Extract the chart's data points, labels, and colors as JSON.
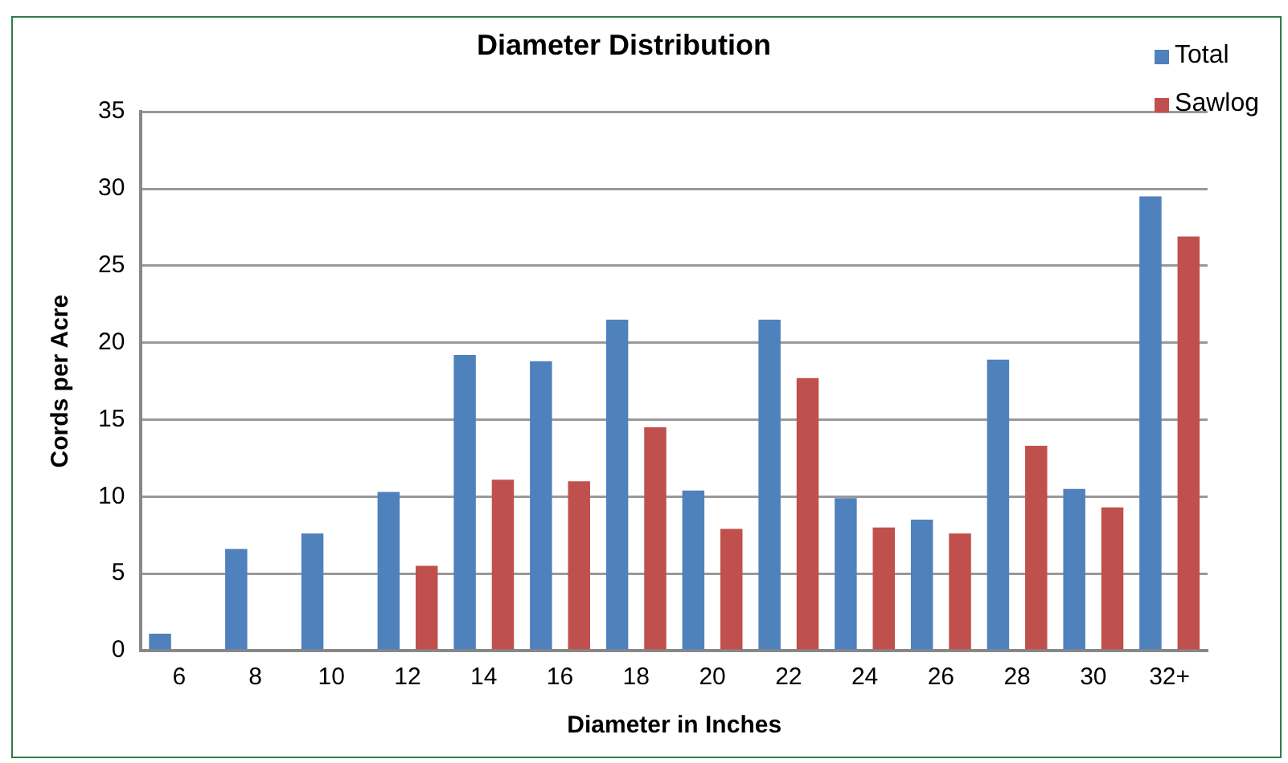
{
  "chart_data": {
    "type": "bar",
    "title": "Diameter Distribution",
    "xlabel": "Diameter in Inches",
    "ylabel": "Cords per Acre",
    "categories": [
      "6",
      "8",
      "10",
      "12",
      "14",
      "16",
      "18",
      "20",
      "22",
      "24",
      "26",
      "28",
      "30",
      "32+"
    ],
    "series": [
      {
        "name": "Total",
        "color": "#4f81bd",
        "values": [
          1.1,
          6.6,
          7.6,
          10.3,
          19.2,
          18.8,
          21.5,
          10.4,
          21.5,
          9.9,
          8.5,
          18.9,
          10.5,
          29.5
        ]
      },
      {
        "name": "Sawlog",
        "color": "#c0504d",
        "values": [
          null,
          null,
          null,
          5.5,
          11.1,
          11.0,
          14.5,
          7.9,
          17.7,
          8.0,
          7.6,
          13.3,
          9.3,
          26.9
        ]
      }
    ],
    "ylim": [
      0,
      35
    ],
    "yticks": [
      0,
      5,
      10,
      15,
      20,
      25,
      30,
      35
    ],
    "grid": "y",
    "legend": "top right"
  }
}
